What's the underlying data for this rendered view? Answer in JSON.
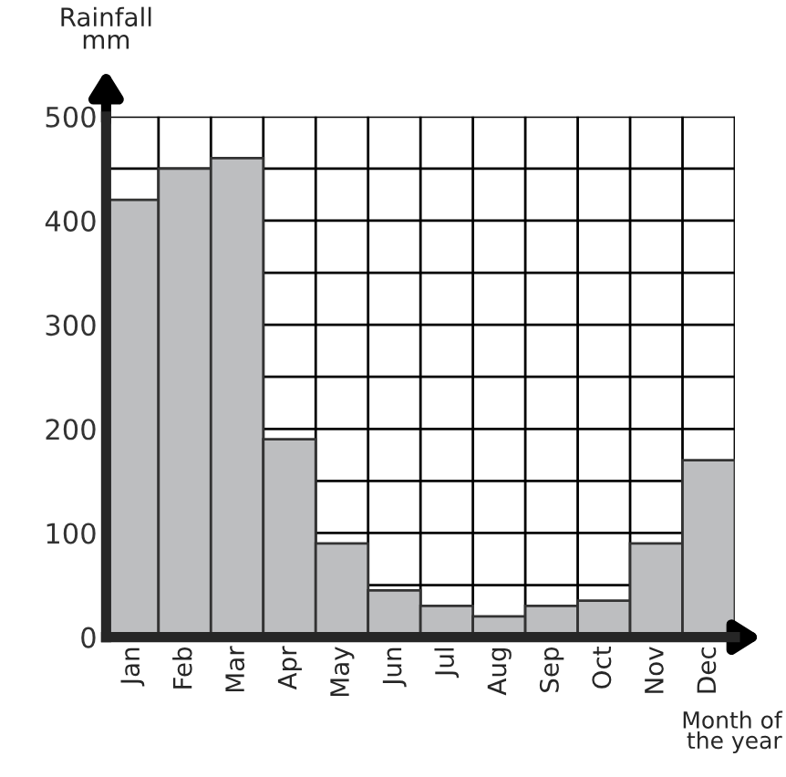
{
  "chart_data": {
    "type": "bar",
    "ylabel": "Rainfall\nmm",
    "xlabel": "Month of\nthe year",
    "categories": [
      "Jan",
      "Feb",
      "Mar",
      "Apr",
      "May",
      "Jun",
      "Jul",
      "Aug",
      "Sep",
      "Oct",
      "Nov",
      "Dec"
    ],
    "values": [
      420,
      450,
      460,
      190,
      90,
      45,
      30,
      20,
      30,
      35,
      90,
      170
    ],
    "color": "#bdbec0",
    "ylim": [
      0,
      500
    ],
    "yticks": [
      0,
      {
        "value": 50,
        "label": null
      },
      100,
      {
        "value": 150,
        "label": null
      },
      200,
      {
        "value": 250,
        "label": null
      },
      300,
      {
        "value": 350,
        "label": null
      },
      400,
      {
        "value": 450,
        "label": null
      },
      500
    ],
    "grid": true
  }
}
